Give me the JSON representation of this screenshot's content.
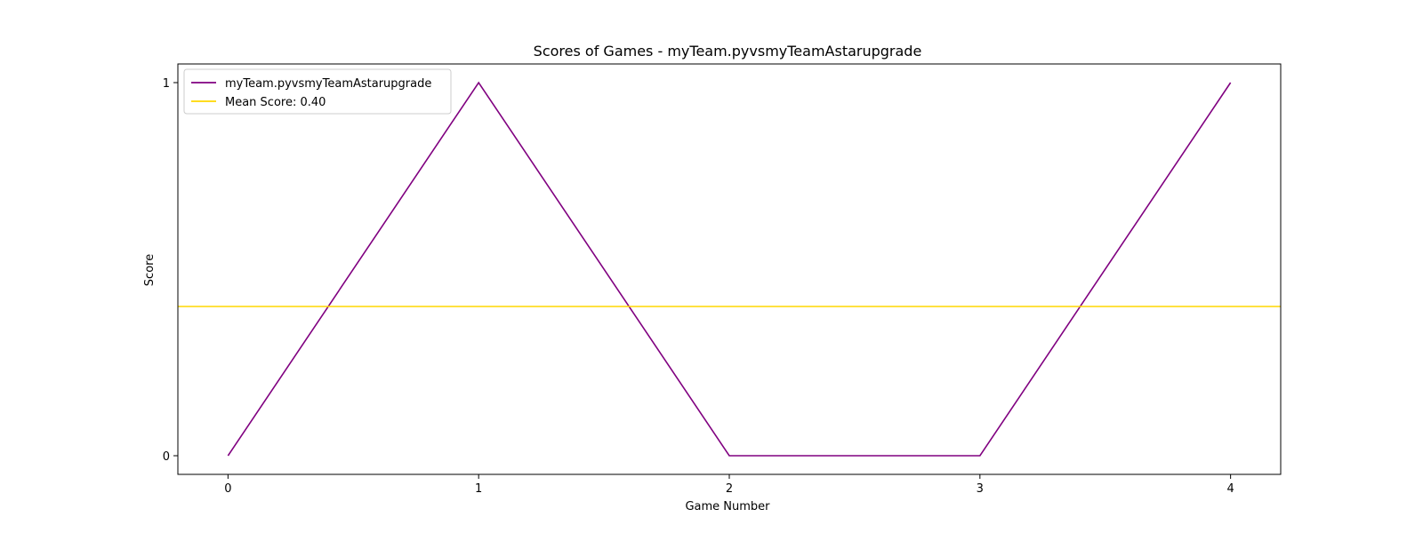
{
  "chart_data": {
    "type": "line",
    "title": "Scores of Games - myTeam.pyvsmyTeamAstarupgrade",
    "xlabel": "Game Number",
    "ylabel": "Score",
    "x": [
      0,
      1,
      2,
      3,
      4
    ],
    "xticks": [
      "0",
      "1",
      "2",
      "3",
      "4"
    ],
    "yticks": [
      "0",
      "1"
    ],
    "xlim": [
      -0.2,
      4.2
    ],
    "ylim": [
      -0.05,
      1.05
    ],
    "series": [
      {
        "name": "myTeam.pyvsmyTeamAstarupgrade",
        "values": [
          0,
          1,
          0,
          0,
          1
        ],
        "color": "#800080"
      }
    ],
    "mean_line": {
      "label": "Mean Score: 0.40",
      "value": 0.4,
      "color": "#FFD700"
    },
    "legend": {
      "placement": "upper-left",
      "entries": [
        "myTeam.pyvsmyTeamAstarupgrade",
        "Mean Score: 0.40"
      ]
    },
    "grid": false
  }
}
